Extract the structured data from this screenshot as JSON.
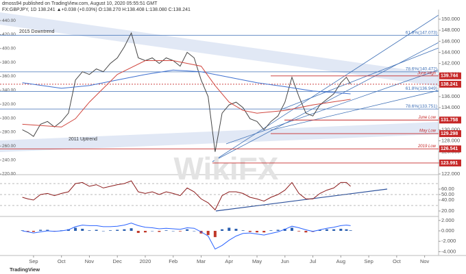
{
  "header": {
    "author_line": "dmoss94 published on TradingView.com, August 10, 2020 05:55:51 GMT",
    "symbol_line": "FX:GBPJPY, 1D 138.241 ▲+0.038 (+0.03%) O:138.270 H:138.408 L:138.080 C:138.241",
    "watermark": "WikiFX",
    "logo": "TradingView"
  },
  "chart_data": [
    {
      "type": "line",
      "xlim": [
        -0.2,
        15.5
      ],
      "xticks": [
        {
          "value": 1,
          "label": "Sep"
        },
        {
          "value": 2,
          "label": "Oct"
        },
        {
          "value": 3,
          "label": "Nov"
        },
        {
          "value": 4,
          "label": "Dec"
        },
        {
          "value": 5,
          "label": "2020"
        },
        {
          "value": 6,
          "label": "Feb"
        },
        {
          "value": 7,
          "label": "Mar"
        },
        {
          "value": 8,
          "label": "Apr"
        },
        {
          "value": 9,
          "label": "May"
        },
        {
          "value": 10,
          "label": "Jun"
        },
        {
          "value": 11,
          "label": "Jul"
        },
        {
          "value": 12,
          "label": "Aug"
        },
        {
          "value": 13,
          "label": "Sep"
        },
        {
          "value": 14,
          "label": "Oct"
        },
        {
          "value": 15,
          "label": "Nov"
        }
      ],
      "ylim": [
        122,
        150
      ],
      "yticks": [
        {
          "value": 122,
          "label": "122.000"
        },
        {
          "value": 124,
          "label": "124.000"
        },
        {
          "value": 126,
          "label": "126.000"
        },
        {
          "value": 128,
          "label": "128.000"
        },
        {
          "value": 130,
          "label": "130.000"
        },
        {
          "value": 132,
          "label": "132.000"
        },
        {
          "value": 134,
          "label": "134.000"
        },
        {
          "value": 136,
          "label": "136.000"
        },
        {
          "value": 138,
          "label": "138.000"
        },
        {
          "value": 140,
          "label": "140.000"
        },
        {
          "value": 142,
          "label": "142.000"
        },
        {
          "value": 144,
          "label": "144.000"
        },
        {
          "value": 146,
          "label": "146.000"
        },
        {
          "value": 148,
          "label": "148.000"
        },
        {
          "value": 150,
          "label": "150.000"
        }
      ],
      "y2lim": [
        220,
        442
      ],
      "y2ticks": [
        {
          "value": 220,
          "label": "220.00"
        },
        {
          "value": 240,
          "label": "240.00"
        },
        {
          "value": 260,
          "label": "260.00"
        },
        {
          "value": 280,
          "label": "280.00"
        },
        {
          "value": 300,
          "label": "300.00"
        },
        {
          "value": 320,
          "label": "320.00"
        },
        {
          "value": 340,
          "label": "340.00"
        },
        {
          "value": 360,
          "label": "360.00"
        },
        {
          "value": 380,
          "label": "380.00"
        },
        {
          "value": 400,
          "label": "400.00"
        },
        {
          "value": 420,
          "label": "420.00"
        },
        {
          "value": 440,
          "label": "440.00"
        }
      ],
      "x": [
        0.6,
        0.8,
        1.0,
        1.25,
        1.5,
        1.75,
        2.0,
        2.25,
        2.5,
        2.75,
        3.0,
        3.25,
        3.5,
        3.75,
        4.0,
        4.25,
        4.5,
        4.75,
        5.0,
        5.25,
        5.5,
        5.75,
        6.0,
        6.25,
        6.5,
        6.75,
        7.0,
        7.25,
        7.5,
        7.75,
        8.0,
        8.25,
        8.5,
        8.75,
        9.0,
        9.25,
        9.5,
        9.75,
        10.0,
        10.25,
        10.5,
        10.75,
        11.0,
        11.25,
        11.5,
        11.75,
        12.0,
        12.2,
        12.35
      ],
      "series": [
        {
          "color": "#444444",
          "values": [
            130.0,
            129.5,
            128.8,
            131.0,
            131.5,
            130.5,
            131.5,
            133.0,
            139.0,
            140.5,
            140.0,
            141.0,
            140.5,
            142.0,
            143.0,
            145.0,
            147.5,
            143.0,
            142.5,
            143.0,
            142.0,
            143.0,
            142.5,
            141.5,
            144.0,
            143.0,
            139.0,
            136.0,
            126.0,
            133.0,
            134.5,
            135.0,
            134.0,
            132.0,
            131.5,
            130.0,
            131.5,
            132.5,
            135.0,
            139.5,
            136.0,
            133.0,
            132.5,
            134.5,
            135.5,
            136.5,
            138.5,
            139.5,
            138.241
          ]
        },
        {
          "color": "#3d6fd0",
          "x": [
            0.6,
            2,
            3,
            4,
            5,
            6,
            7,
            8,
            9,
            10,
            11,
            12.35
          ],
          "values": [
            138.5,
            137.5,
            138.0,
            139.0,
            140.0,
            140.8,
            140.5,
            139.5,
            138.5,
            137.8,
            137.0,
            136.5
          ]
        },
        {
          "color": "#d0453d",
          "x": [
            0.6,
            2,
            2.5,
            3,
            4,
            5,
            6,
            7,
            7.5,
            8,
            8.5,
            9,
            10,
            11,
            12.35
          ],
          "values": [
            131,
            130.5,
            132,
            135,
            140,
            142.5,
            142.5,
            141.5,
            138,
            135,
            133.5,
            133,
            133.5,
            134.5,
            135.5
          ]
        }
      ],
      "annotations": [
        "2015 Downtrend",
        "2011 Uptrend"
      ],
      "fib_levels": [
        {
          "label": "61.8%(147.073)",
          "value": 147.073
        },
        {
          "label": "78.6%(140.472)",
          "value": 140.472
        },
        {
          "label": "61.8%(136.949)",
          "value": 136.949
        },
        {
          "label": "78.6%(133.751)",
          "value": 133.751
        }
      ],
      "level_tags": [
        {
          "value": 139.744,
          "note": "June High"
        },
        {
          "value": 138.241
        },
        {
          "value": 131.758,
          "note": "June Low"
        },
        {
          "value": 129.298,
          "note": "May Low"
        },
        {
          "value": 126.541,
          "note": "2019 Low"
        },
        {
          "value": 123.991
        }
      ],
      "tag_color": "#c62828",
      "fib_color": "#3d6fb6"
    },
    {
      "type": "line",
      "ylim": [
        12.5,
        85
      ],
      "yticks": [
        {
          "value": 20,
          "label": "20.00"
        },
        {
          "value": 40,
          "label": "40.00"
        },
        {
          "value": 50,
          "label": "50.00"
        },
        {
          "value": 60,
          "label": "60.00"
        }
      ],
      "hlines": [
        70,
        50,
        30
      ],
      "x": [
        0.6,
        0.8,
        1.0,
        1.25,
        1.5,
        1.75,
        2.0,
        2.25,
        2.5,
        2.75,
        3.0,
        3.25,
        3.5,
        3.75,
        4.0,
        4.25,
        4.5,
        4.75,
        5.0,
        5.25,
        5.5,
        5.75,
        6.0,
        6.25,
        6.5,
        6.75,
        7.0,
        7.25,
        7.5,
        7.75,
        8.0,
        8.25,
        8.5,
        8.75,
        9.0,
        9.25,
        9.5,
        9.75,
        10.0,
        10.25,
        10.5,
        10.75,
        11.0,
        11.25,
        11.5,
        11.75,
        12.0,
        12.2,
        12.35
      ],
      "series": [
        {
          "color": "#8b1a1a",
          "values": [
            45,
            42,
            40,
            50,
            52,
            48,
            52,
            55,
            70,
            72,
            65,
            68,
            62,
            65,
            68,
            70,
            75,
            55,
            52,
            55,
            50,
            55,
            52,
            48,
            62,
            55,
            42,
            35,
            22,
            48,
            55,
            55,
            52,
            45,
            42,
            38,
            45,
            50,
            58,
            72,
            52,
            42,
            42,
            52,
            58,
            62,
            72,
            72,
            65
          ]
        }
      ]
    },
    {
      "type": "bar",
      "ylim": [
        -4.6,
        2.5
      ],
      "yticks": [
        {
          "value": -4,
          "label": "-4.000"
        },
        {
          "value": -2,
          "label": "-2.000"
        },
        {
          "value": 0,
          "label": "0.000"
        },
        {
          "value": 2,
          "label": "2.000"
        }
      ],
      "x": [
        0.6,
        0.8,
        1.0,
        1.25,
        1.5,
        1.75,
        2.0,
        2.25,
        2.5,
        2.75,
        3.0,
        3.25,
        3.5,
        3.75,
        4.0,
        4.25,
        4.5,
        4.75,
        5.0,
        5.25,
        5.5,
        5.75,
        6.0,
        6.25,
        6.5,
        6.75,
        7.0,
        7.25,
        7.5,
        7.75,
        8.0,
        8.25,
        8.5,
        8.75,
        9.0,
        9.25,
        9.5,
        9.75,
        10.0,
        10.25,
        10.5,
        10.75,
        11.0,
        11.25,
        11.5,
        11.75,
        12.0,
        12.2,
        12.35
      ],
      "values": [
        0.1,
        -0.1,
        -0.2,
        0.2,
        0.2,
        -0.1,
        0.1,
        0.3,
        0.6,
        0.4,
        0.1,
        0.2,
        0,
        0.1,
        0.2,
        0.3,
        0.5,
        -0.4,
        -0.3,
        0,
        -0.2,
        0.1,
        0,
        -0.1,
        0.3,
        0,
        -0.5,
        -0.8,
        -1.2,
        0.3,
        0.6,
        0.4,
        0.1,
        -0.2,
        -0.3,
        -0.3,
        0.1,
        0.2,
        0.4,
        0.6,
        -0.1,
        -0.3,
        -0.2,
        0.2,
        0.3,
        0.3,
        0.4,
        0.3,
        0.1
      ],
      "positive_color": "#2a5fb0",
      "negative_color": "#c0392b",
      "series": [
        {
          "color": "#2962ff",
          "values": [
            0,
            -0.2,
            -0.4,
            -0.2,
            0,
            -0.1,
            0,
            0.2,
            0.8,
            1.1,
            1.0,
            1.0,
            0.8,
            0.8,
            0.9,
            1.1,
            1.5,
            1.0,
            0.7,
            0.6,
            0.4,
            0.5,
            0.4,
            0.3,
            0.6,
            0.5,
            -0.2,
            -1.0,
            -3.5,
            -2.8,
            -1.8,
            -1.0,
            -0.5,
            -0.4,
            -0.6,
            -0.8,
            -0.5,
            -0.2,
            0.3,
            0.9,
            0.6,
            0.2,
            -0.1,
            0.2,
            0.5,
            0.7,
            1.0,
            1.1,
            1.0
          ]
        }
      ]
    }
  ]
}
